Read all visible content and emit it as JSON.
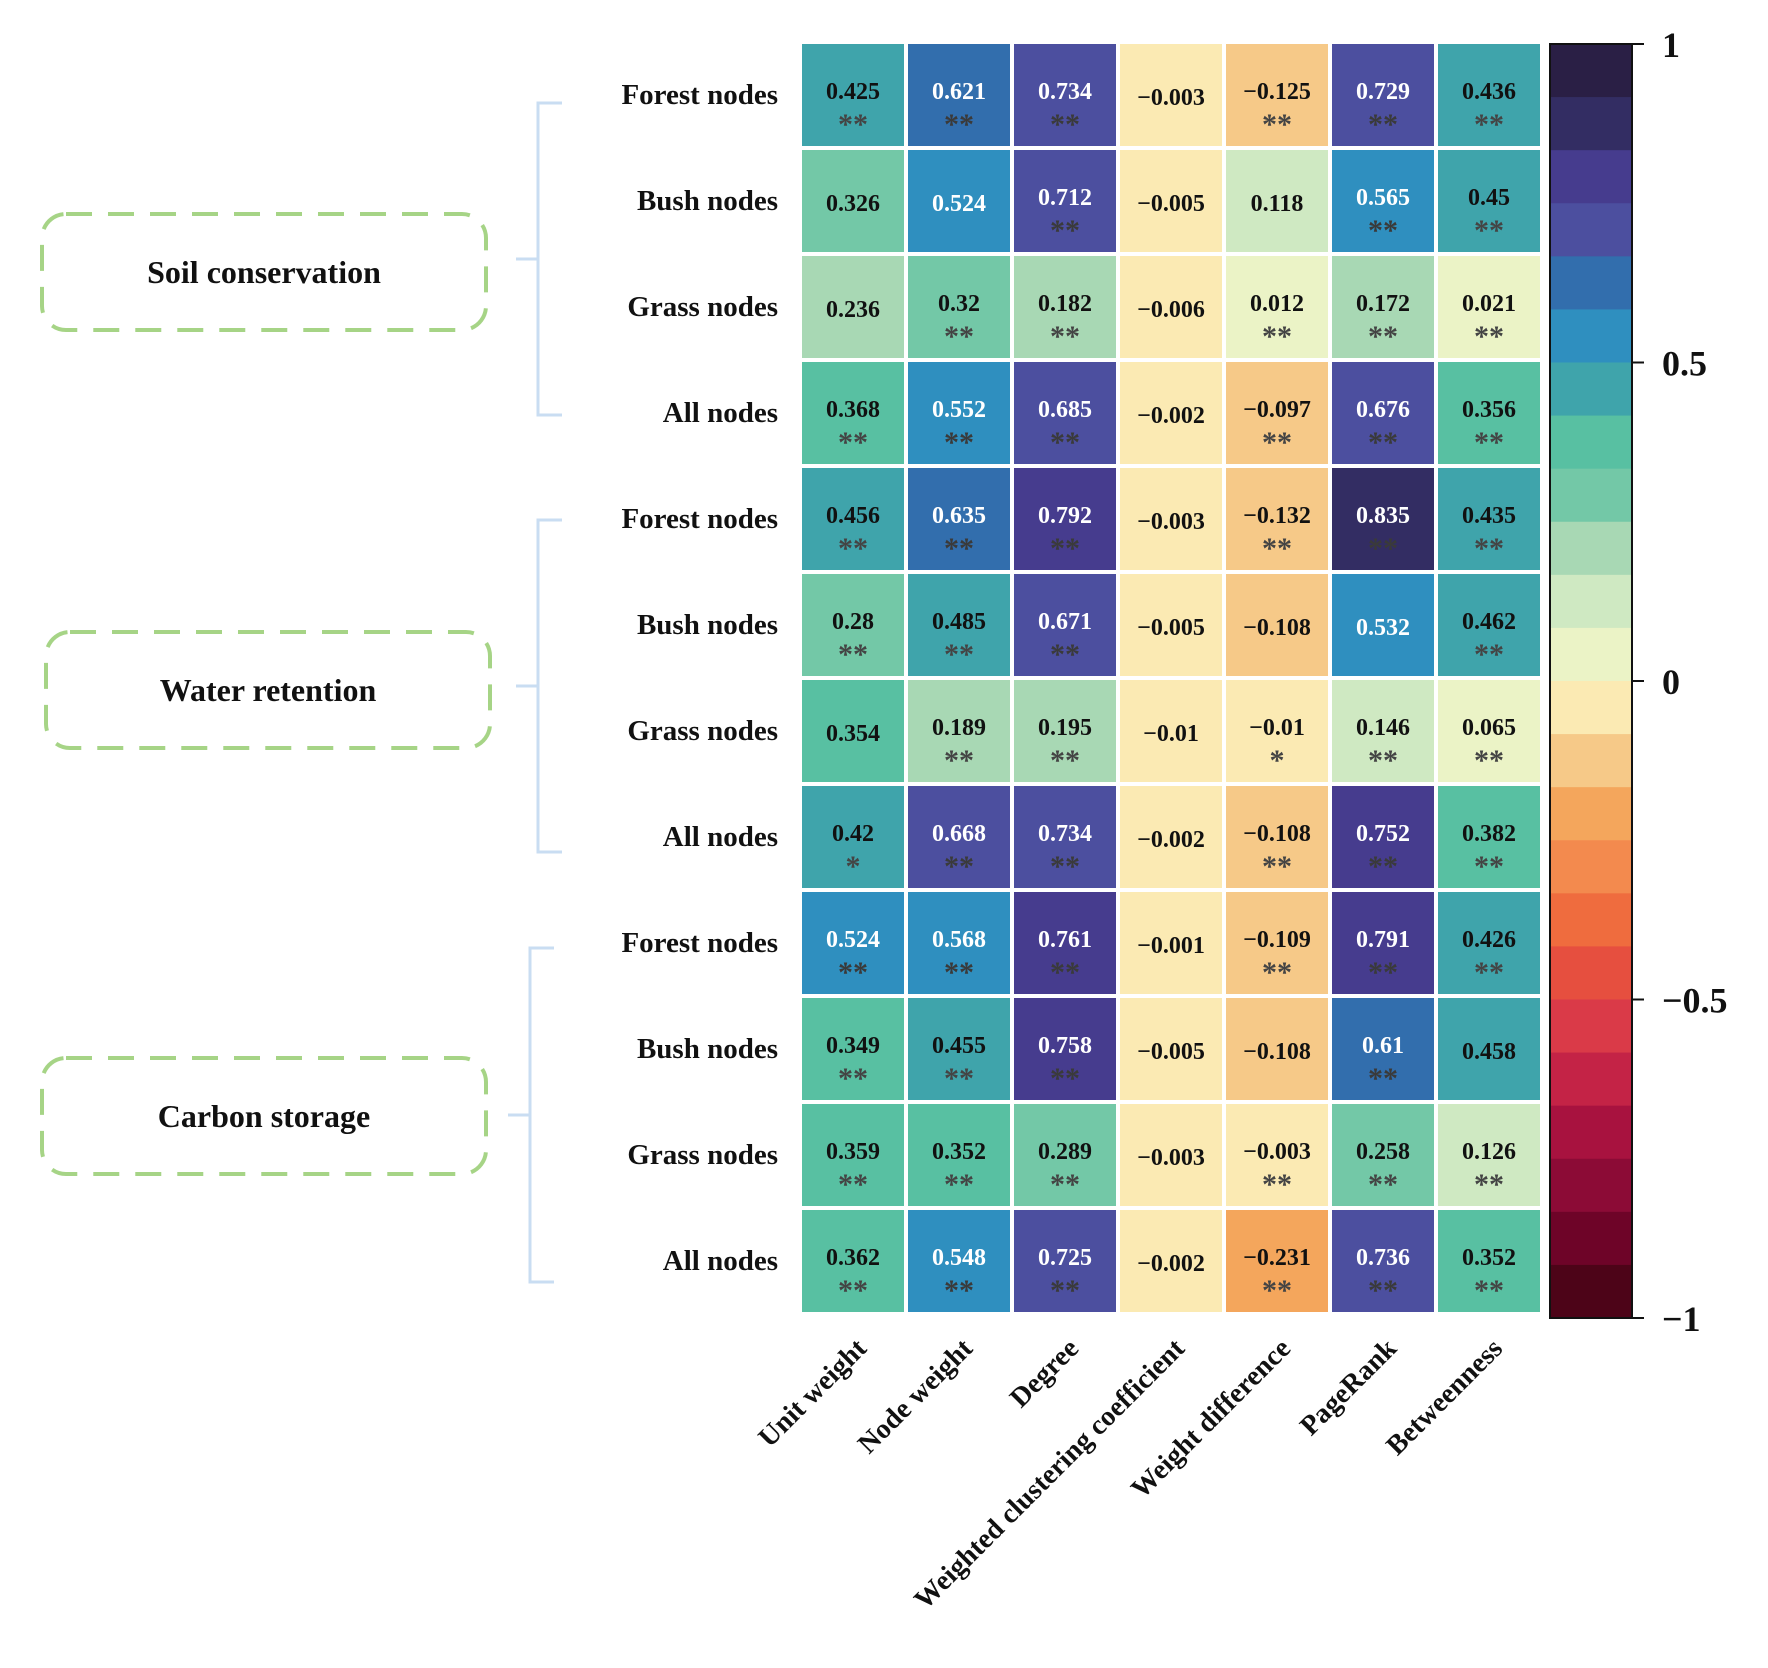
{
  "chart_data": {
    "type": "heatmap",
    "title": "",
    "groups": [
      {
        "label": "Soil conservation",
        "rows": [
          "Forest nodes",
          "Bush nodes",
          "Grass nodes",
          "All nodes"
        ]
      },
      {
        "label": "Water retention",
        "rows": [
          "Forest nodes",
          "Bush nodes",
          "Grass nodes",
          "All nodes"
        ]
      },
      {
        "label": "Carbon storage",
        "rows": [
          "Forest nodes",
          "Bush nodes",
          "Grass nodes",
          "All nodes"
        ]
      }
    ],
    "columns": [
      "Unit weight",
      "Node weight",
      "Degree",
      "Weighted clustering coefficient",
      "Weight difference",
      "PageRank",
      "Betweenness"
    ],
    "values": [
      [
        0.425,
        0.621,
        0.734,
        -0.003,
        -0.125,
        0.729,
        0.436
      ],
      [
        0.326,
        0.524,
        0.712,
        -0.005,
        0.118,
        0.565,
        0.45
      ],
      [
        0.236,
        0.32,
        0.182,
        -0.006,
        0.012,
        0.172,
        0.021
      ],
      [
        0.368,
        0.552,
        0.685,
        -0.002,
        -0.097,
        0.676,
        0.356
      ],
      [
        0.456,
        0.635,
        0.792,
        -0.003,
        -0.132,
        0.835,
        0.435
      ],
      [
        0.28,
        0.485,
        0.671,
        -0.005,
        -0.108,
        0.532,
        0.462
      ],
      [
        0.354,
        0.189,
        0.195,
        -0.01,
        -0.01,
        0.146,
        0.065
      ],
      [
        0.42,
        0.668,
        0.734,
        -0.002,
        -0.108,
        0.752,
        0.382
      ],
      [
        0.524,
        0.568,
        0.761,
        -0.001,
        -0.109,
        0.791,
        0.426
      ],
      [
        0.349,
        0.455,
        0.758,
        -0.005,
        -0.108,
        0.61,
        0.458
      ],
      [
        0.359,
        0.352,
        0.289,
        -0.003,
        -0.003,
        0.258,
        0.126
      ],
      [
        0.362,
        0.548,
        0.725,
        -0.002,
        -0.231,
        0.736,
        0.352
      ]
    ],
    "labels": [
      [
        "0.425",
        "0.621",
        "0.734",
        "−0.003",
        "−0.125",
        "0.729",
        "0.436"
      ],
      [
        "0.326",
        "0.524",
        "0.712",
        "−0.005",
        "0.118",
        "0.565",
        "0.45"
      ],
      [
        "0.236",
        "0.32",
        "0.182",
        "−0.006",
        "0.012",
        "0.172",
        "0.021"
      ],
      [
        "0.368",
        "0.552",
        "0.685",
        "−0.002",
        "−0.097",
        "0.676",
        "0.356"
      ],
      [
        "0.456",
        "0.635",
        "0.792",
        "−0.003",
        "−0.132",
        "0.835",
        "0.435"
      ],
      [
        "0.28",
        "0.485",
        "0.671",
        "−0.005",
        "−0.108",
        "0.532",
        "0.462"
      ],
      [
        "0.354",
        "0.189",
        "0.195",
        "−0.01",
        "−0.01",
        "0.146",
        "0.065"
      ],
      [
        "0.42",
        "0.668",
        "0.734",
        "−0.002",
        "−0.108",
        "0.752",
        "0.382"
      ],
      [
        "0.524",
        "0.568",
        "0.761",
        "−0.001",
        "−0.109",
        "0.791",
        "0.426"
      ],
      [
        "0.349",
        "0.455",
        "0.758",
        "−0.005",
        "−0.108",
        "0.61",
        "0.458"
      ],
      [
        "0.359",
        "0.352",
        "0.289",
        "−0.003",
        "−0.003",
        "0.258",
        "0.126"
      ],
      [
        "0.362",
        "0.548",
        "0.725",
        "−0.002",
        "−0.231",
        "0.736",
        "0.352"
      ]
    ],
    "significance": [
      [
        "**",
        "**",
        "**",
        "",
        "**",
        "**",
        "**"
      ],
      [
        "",
        "",
        "**",
        "",
        "",
        "**",
        "**"
      ],
      [
        "",
        "**",
        "**",
        "",
        "**",
        "**",
        "**"
      ],
      [
        "**",
        "**",
        "**",
        "",
        "**",
        "**",
        "**"
      ],
      [
        "**",
        "**",
        "**",
        "",
        "**",
        "**",
        "**"
      ],
      [
        "**",
        "**",
        "**",
        "",
        "",
        "",
        "**"
      ],
      [
        "",
        "**",
        "**",
        "",
        "*",
        "**",
        "**"
      ],
      [
        "*",
        "**",
        "**",
        "",
        "**",
        "**",
        "**"
      ],
      [
        "**",
        "**",
        "**",
        "",
        "**",
        "**",
        "**"
      ],
      [
        "**",
        "**",
        "**",
        "",
        "",
        "**",
        ""
      ],
      [
        "**",
        "**",
        "**",
        "",
        "**",
        "**",
        "**"
      ],
      [
        "**",
        "**",
        "**",
        "",
        "**",
        "**",
        "**"
      ]
    ],
    "colorbar": {
      "range": [
        -1,
        1
      ],
      "ticks": [
        1,
        0.5,
        0,
        -0.5,
        -1
      ],
      "tick_labels": [
        "1",
        "0.5",
        "0",
        "−0.5",
        "−1"
      ],
      "colors_top_to_bottom": [
        "#2a1f45",
        "#332d63",
        "#463c8e",
        "#4c4f9f",
        "#326ead",
        "#2f8fbf",
        "#3fa4ab",
        "#58c0a2",
        "#73c8a7",
        "#a8d8b4",
        "#cfe9c2",
        "#ebf3c6",
        "#fbeab3",
        "#f6c988",
        "#f4a65c",
        "#f38a4e",
        "#ef6c3e",
        "#e64f3f",
        "#da3a48",
        "#c42346",
        "#a8123f",
        "#8c0b36",
        "#6e0428",
        "#4d0418"
      ]
    }
  }
}
